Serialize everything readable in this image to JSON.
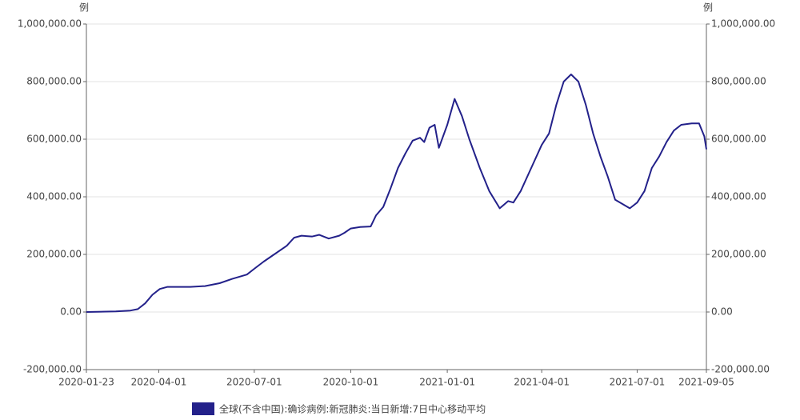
{
  "chart_data": {
    "type": "line",
    "y_label": "例",
    "y2_label": "例",
    "x": [
      "2020-01-23",
      "2020-02-20",
      "2020-03-05",
      "2020-03-12",
      "2020-03-19",
      "2020-03-26",
      "2020-04-02",
      "2020-04-09",
      "2020-04-20",
      "2020-05-01",
      "2020-05-15",
      "2020-05-29",
      "2020-06-10",
      "2020-06-24",
      "2020-07-01",
      "2020-07-10",
      "2020-07-20",
      "2020-08-01",
      "2020-08-08",
      "2020-08-15",
      "2020-08-25",
      "2020-09-01",
      "2020-09-10",
      "2020-09-20",
      "2020-09-25",
      "2020-10-01",
      "2020-10-10",
      "2020-10-20",
      "2020-10-25",
      "2020-11-01",
      "2020-11-08",
      "2020-11-15",
      "2020-11-22",
      "2020-11-29",
      "2020-12-06",
      "2020-12-10",
      "2020-12-15",
      "2020-12-20",
      "2020-12-24",
      "2021-01-01",
      "2021-01-08",
      "2021-01-15",
      "2021-01-22",
      "2021-02-01",
      "2021-02-10",
      "2021-02-20",
      "2021-02-28",
      "2021-03-05",
      "2021-03-12",
      "2021-03-22",
      "2021-04-01",
      "2021-04-08",
      "2021-04-15",
      "2021-04-22",
      "2021-04-29",
      "2021-05-06",
      "2021-05-13",
      "2021-05-20",
      "2021-05-27",
      "2021-06-03",
      "2021-06-10",
      "2021-06-17",
      "2021-06-24",
      "2021-07-01",
      "2021-07-08",
      "2021-07-15",
      "2021-07-22",
      "2021-07-29",
      "2021-08-05",
      "2021-08-12",
      "2021-08-22",
      "2021-08-29",
      "2021-09-03",
      "2021-09-05"
    ],
    "series": [
      {
        "name": "全球(不含中国):确诊病例:新冠肺炎:当日新增:7日中心移动平均",
        "color": "#23218a",
        "values": [
          0,
          2000,
          5000,
          10000,
          30000,
          60000,
          80000,
          87000,
          87000,
          87000,
          90000,
          100000,
          115000,
          130000,
          150000,
          175000,
          200000,
          230000,
          258000,
          265000,
          262000,
          268000,
          255000,
          265000,
          275000,
          290000,
          295000,
          297000,
          335000,
          365000,
          430000,
          500000,
          550000,
          595000,
          605000,
          590000,
          640000,
          650000,
          570000,
          650000,
          740000,
          680000,
          600000,
          500000,
          420000,
          360000,
          385000,
          380000,
          420000,
          500000,
          580000,
          620000,
          720000,
          800000,
          825000,
          800000,
          720000,
          620000,
          540000,
          470000,
          390000,
          375000,
          360000,
          380000,
          420000,
          500000,
          540000,
          590000,
          630000,
          650000,
          655000,
          655000,
          610000,
          565000
        ]
      }
    ],
    "xlim": [
      "2020-01-23",
      "2021-09-05"
    ],
    "xticks": [
      "2020-01-23",
      "2020-04-01",
      "2020-07-01",
      "2020-10-01",
      "2021-01-01",
      "2021-04-01",
      "2021-07-01",
      "2021-09-05"
    ],
    "ylim": [
      -200000,
      1000000
    ],
    "yticks": [
      {
        "value": -200000,
        "label": "-200,000.00"
      },
      {
        "value": 0,
        "label": "0.00"
      },
      {
        "value": 200000,
        "label": "200,000.00"
      },
      {
        "value": 400000,
        "label": "400,000.00"
      },
      {
        "value": 600000,
        "label": "600,000.00"
      },
      {
        "value": 800000,
        "label": "800,000.00"
      },
      {
        "value": 1000000,
        "label": "1,000,000.00"
      }
    ],
    "y2lim": [
      -200000,
      1000000
    ],
    "y2ticks": [
      {
        "value": -200000,
        "label": "-200,000.00"
      },
      {
        "value": 0,
        "label": "0.00"
      },
      {
        "value": 200000,
        "label": "200,000.00"
      },
      {
        "value": 400000,
        "label": "400,000.00"
      },
      {
        "value": 600000,
        "label": "600,000.00"
      },
      {
        "value": 800000,
        "label": "800,000.00"
      },
      {
        "value": 1000000,
        "label": "1,000,000.00"
      }
    ],
    "grid": true
  }
}
